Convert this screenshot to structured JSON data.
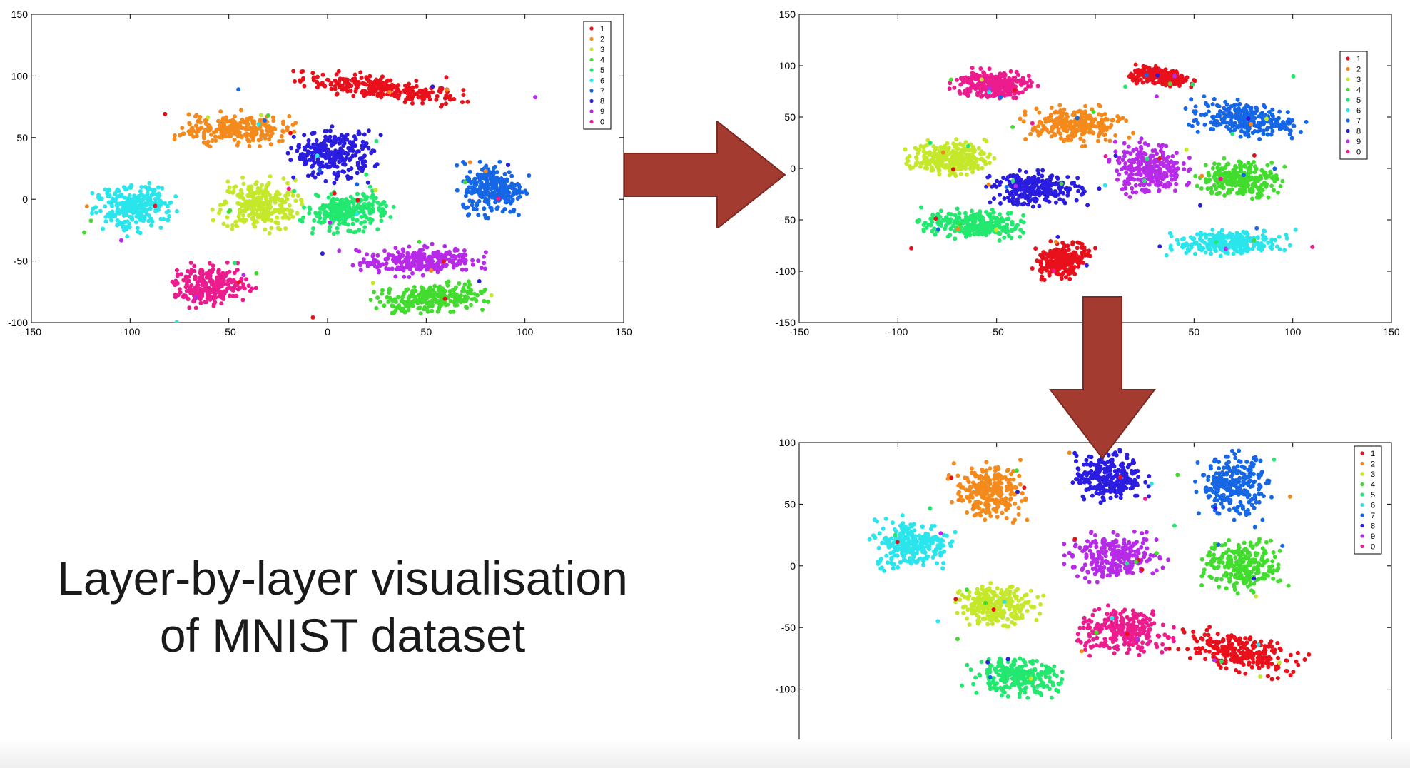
{
  "caption": {
    "line1": "Layer-by-layer visualisation",
    "line2": "of MNIST dataset"
  },
  "colors": {
    "1": "#e8111b",
    "2": "#f48a1c",
    "3": "#c5e82a",
    "4": "#42dc2e",
    "5": "#22e86f",
    "6": "#2ae5eb",
    "7": "#1667e6",
    "8": "#2b1de0",
    "9": "#b72ae8",
    "0": "#ec1c8e",
    "arrow": "#a33b31"
  },
  "legend_entries": [
    "1",
    "2",
    "3",
    "4",
    "5",
    "6",
    "7",
    "8",
    "9",
    "0"
  ],
  "chart_data": [
    {
      "type": "scatter",
      "panel": "top-left",
      "xlim": [
        -150,
        150
      ],
      "ylim": [
        -100,
        150
      ],
      "xticks": [
        -150,
        -100,
        -50,
        0,
        50,
        100,
        150
      ],
      "yticks": [
        -100,
        -50,
        0,
        50,
        100,
        150
      ],
      "legend": "top-right",
      "clusters": [
        {
          "label": "1",
          "cx": 27,
          "cy": 90,
          "rx": 48,
          "ry": 10,
          "angle": -12
        },
        {
          "label": "2",
          "cx": -47,
          "cy": 57,
          "rx": 30,
          "ry": 15,
          "angle": 0
        },
        {
          "label": "3",
          "cx": -35,
          "cy": -5,
          "rx": 22,
          "ry": 24,
          "angle": 0
        },
        {
          "label": "4",
          "cx": 52,
          "cy": -80,
          "rx": 30,
          "ry": 13,
          "angle": 5
        },
        {
          "label": "5",
          "cx": 10,
          "cy": -10,
          "rx": 24,
          "ry": 17,
          "angle": 15
        },
        {
          "label": "6",
          "cx": -98,
          "cy": -7,
          "rx": 22,
          "ry": 20,
          "angle": 20
        },
        {
          "label": "7",
          "cx": 84,
          "cy": 9,
          "rx": 18,
          "ry": 24,
          "angle": 0
        },
        {
          "label": "8",
          "cx": 3,
          "cy": 36,
          "rx": 23,
          "ry": 22,
          "angle": 0
        },
        {
          "label": "9",
          "cx": 45,
          "cy": -50,
          "rx": 34,
          "ry": 13,
          "angle": 5
        },
        {
          "label": "0",
          "cx": -59,
          "cy": -70,
          "rx": 22,
          "ry": 18,
          "angle": 0
        }
      ]
    },
    {
      "type": "scatter",
      "panel": "top-right",
      "xlim": [
        -150,
        150
      ],
      "ylim": [
        -150,
        150
      ],
      "xticks": [
        -150,
        -100,
        -50,
        0,
        50,
        100,
        150
      ],
      "yticks": [
        -150,
        -100,
        -50,
        0,
        50,
        100,
        150
      ],
      "legend": "top-right",
      "clusters": [
        {
          "label": "1",
          "cx": 33,
          "cy": 89,
          "rx": 18,
          "ry": 9,
          "angle": -15
        },
        {
          "label": "1",
          "cx": -17,
          "cy": -90,
          "rx": 12,
          "ry": 20,
          "angle": -20
        },
        {
          "label": "2",
          "cx": -10,
          "cy": 42,
          "rx": 27,
          "ry": 20,
          "angle": 0
        },
        {
          "label": "3",
          "cx": -74,
          "cy": 10,
          "rx": 22,
          "ry": 18,
          "angle": 0
        },
        {
          "label": "4",
          "cx": 73,
          "cy": -10,
          "rx": 22,
          "ry": 20,
          "angle": 0
        },
        {
          "label": "5",
          "cx": -62,
          "cy": -55,
          "rx": 28,
          "ry": 16,
          "angle": -10
        },
        {
          "label": "6",
          "cx": 68,
          "cy": -72,
          "rx": 33,
          "ry": 13,
          "angle": 5
        },
        {
          "label": "7",
          "cx": 75,
          "cy": 48,
          "rx": 30,
          "ry": 18,
          "angle": -15
        },
        {
          "label": "8",
          "cx": -30,
          "cy": -20,
          "rx": 26,
          "ry": 18,
          "angle": 0
        },
        {
          "label": "9",
          "cx": 27,
          "cy": 0,
          "rx": 20,
          "ry": 28,
          "angle": 0
        },
        {
          "label": "0",
          "cx": -52,
          "cy": 82,
          "rx": 22,
          "ry": 16,
          "angle": 0
        }
      ]
    },
    {
      "type": "scatter",
      "panel": "bottom-right",
      "xlim": [
        -150,
        150
      ],
      "ylim": [
        -150,
        100
      ],
      "xticks": [
        -150,
        -100,
        -50,
        0,
        50,
        100,
        150
      ],
      "yticks": [
        -150,
        -100,
        -50,
        0,
        50,
        100
      ],
      "legend": "top-right",
      "clusters": [
        {
          "label": "1",
          "cx": 73,
          "cy": -70,
          "rx": 33,
          "ry": 15,
          "angle": -25
        },
        {
          "label": "2",
          "cx": -54,
          "cy": 60,
          "rx": 20,
          "ry": 24,
          "angle": 0
        },
        {
          "label": "3",
          "cx": -50,
          "cy": -32,
          "rx": 22,
          "ry": 17,
          "angle": -5
        },
        {
          "label": "4",
          "cx": 75,
          "cy": 0,
          "rx": 23,
          "ry": 22,
          "angle": 0
        },
        {
          "label": "5",
          "cx": -40,
          "cy": -90,
          "rx": 26,
          "ry": 16,
          "angle": -10
        },
        {
          "label": "6",
          "cx": -93,
          "cy": 18,
          "rx": 22,
          "ry": 22,
          "angle": 0
        },
        {
          "label": "7",
          "cx": 70,
          "cy": 65,
          "rx": 20,
          "ry": 27,
          "angle": 0
        },
        {
          "label": "8",
          "cx": 7,
          "cy": 72,
          "rx": 20,
          "ry": 22,
          "angle": 0
        },
        {
          "label": "9",
          "cx": 10,
          "cy": 7,
          "rx": 26,
          "ry": 20,
          "angle": 0
        },
        {
          "label": "0",
          "cx": 14,
          "cy": -53,
          "rx": 27,
          "ry": 20,
          "angle": 0
        }
      ]
    }
  ]
}
